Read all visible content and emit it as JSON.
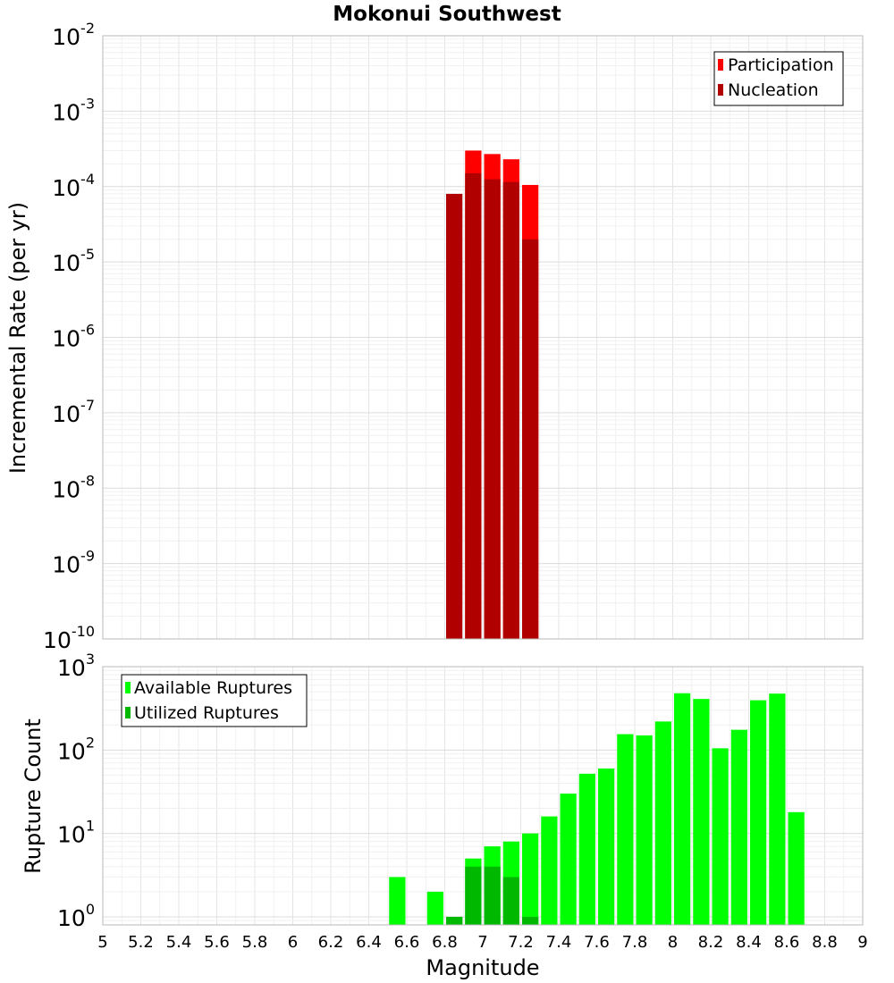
{
  "chart_data": [
    {
      "type": "bar",
      "title": "Mokonui Southwest",
      "xlabel": "",
      "ylabel": "Incremental Rate (per yr)",
      "yscale": "log",
      "xlim": [
        5,
        9
      ],
      "ylim": [
        1e-10,
        0.01
      ],
      "y_ticks": [
        {
          "base": "10",
          "exp": "-10",
          "value": 1e-10
        },
        {
          "base": "10",
          "exp": "-9",
          "value": 1e-09
        },
        {
          "base": "10",
          "exp": "-8",
          "value": 1e-08
        },
        {
          "base": "10",
          "exp": "-7",
          "value": 1e-07
        },
        {
          "base": "10",
          "exp": "-6",
          "value": 1e-06
        },
        {
          "base": "10",
          "exp": "-5",
          "value": 1e-05
        },
        {
          "base": "10",
          "exp": "-4",
          "value": 0.0001
        },
        {
          "base": "10",
          "exp": "-3",
          "value": 0.001
        },
        {
          "base": "10",
          "exp": "-2",
          "value": 0.01
        }
      ],
      "grid": true,
      "legend_position": "top-right",
      "series": [
        {
          "name": "Participation",
          "color": "#ff0000",
          "x": [
            6.95,
            7.05,
            7.15,
            7.25
          ],
          "values": [
            0.0003,
            0.00027,
            0.00023,
            0.000105
          ]
        },
        {
          "name": "Nucleation",
          "color": "#b00000",
          "x": [
            6.85,
            6.95,
            7.05,
            7.15,
            7.25
          ],
          "values": [
            8e-05,
            0.00015,
            0.000125,
            0.000115,
            2e-05
          ]
        }
      ]
    },
    {
      "type": "bar",
      "title": "",
      "xlabel": "Magnitude",
      "ylabel": "Rupture Count",
      "yscale": "log",
      "xlim": [
        5,
        9
      ],
      "ylim": [
        0.8,
        1000
      ],
      "x_ticks": [
        "5",
        "5.2",
        "5.4",
        "5.6",
        "5.8",
        "6",
        "6.2",
        "6.4",
        "6.6",
        "6.8",
        "7",
        "7.2",
        "7.4",
        "7.6",
        "7.8",
        "8",
        "8.2",
        "8.4",
        "8.6",
        "8.8",
        "9"
      ],
      "y_ticks": [
        {
          "base": "10",
          "exp": "0",
          "value": 1
        },
        {
          "base": "10",
          "exp": "1",
          "value": 10
        },
        {
          "base": "10",
          "exp": "2",
          "value": 100
        },
        {
          "base": "10",
          "exp": "3",
          "value": 1000
        }
      ],
      "grid": true,
      "legend_position": "top-left",
      "series": [
        {
          "name": "Available Ruptures",
          "color": "#00ff00",
          "x": [
            6.55,
            6.75,
            6.85,
            6.95,
            7.05,
            7.15,
            7.25,
            7.35,
            7.45,
            7.55,
            7.65,
            7.75,
            7.85,
            7.95,
            8.05,
            8.15,
            8.25,
            8.35,
            8.45,
            8.55,
            8.65
          ],
          "values": [
            3,
            2,
            1,
            5,
            7,
            8,
            10,
            16,
            30,
            52,
            60,
            155,
            150,
            220,
            480,
            410,
            105,
            175,
            395,
            475,
            18
          ]
        },
        {
          "name": "Utilized Ruptures",
          "color": "#00b800",
          "x": [
            6.85,
            6.95,
            7.05,
            7.15,
            7.25
          ],
          "values": [
            1,
            4,
            4,
            3,
            1
          ]
        }
      ]
    }
  ]
}
